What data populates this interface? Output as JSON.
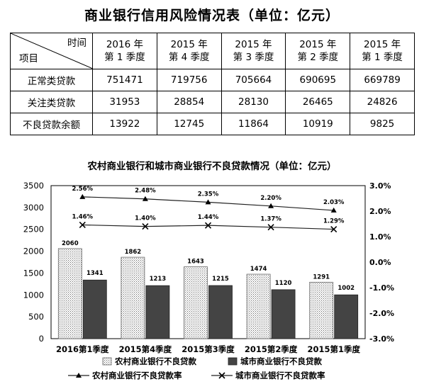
{
  "table": {
    "title": "商业银行信用风险情况表（单位：亿元）",
    "corner_top": "时间",
    "corner_bottom": "项目",
    "columns": [
      {
        "line1": "2016 年",
        "line2": "第 1 季度"
      },
      {
        "line1": "2015 年",
        "line2": "第 4 季度"
      },
      {
        "line1": "2015 年",
        "line2": "第 3 季度"
      },
      {
        "line1": "2015 年",
        "line2": "第 2 季度"
      },
      {
        "line1": "2015 年",
        "line2": "第 1 季度"
      }
    ],
    "rows": [
      {
        "label": "正常类贷款",
        "values": [
          "751471",
          "719756",
          "705664",
          "690695",
          "669789"
        ]
      },
      {
        "label": "关注类贷款",
        "values": [
          "31953",
          "28854",
          "28130",
          "26465",
          "24826"
        ]
      },
      {
        "label": "不良贷款余额",
        "values": [
          "13922",
          "12745",
          "11864",
          "10919",
          "9825"
        ]
      }
    ]
  },
  "chart_data": {
    "type": "bar",
    "title": "农村商业银行和城市商业银行不良贷款情况（单位：亿元）",
    "categories": [
      "2016第1季度",
      "2015第4季度",
      "2015第3季度",
      "2015第2季度",
      "2015第1季度"
    ],
    "ylim": [
      0,
      3500
    ],
    "yticks": [
      "0",
      "500",
      "1000",
      "1500",
      "2000",
      "2500",
      "3000",
      "3500"
    ],
    "ylim_right": [
      -3.0,
      3.0
    ],
    "yticks_right": [
      "-3.0%",
      "-2.0%",
      "-1.0%",
      "0.0%",
      "1.0%",
      "2.0%",
      "3.0%"
    ],
    "bar_series": [
      {
        "name": "农村商业银行不良贷款",
        "values": [
          2060,
          1862,
          1643,
          1474,
          1291
        ],
        "labels": [
          "2060",
          "1862",
          "1643",
          "1474",
          "1291"
        ]
      },
      {
        "name": "城市商业银行不良贷款",
        "values": [
          1341,
          1213,
          1215,
          1120,
          1002
        ],
        "labels": [
          "1341",
          "1213",
          "1215",
          "1120",
          "1002"
        ]
      }
    ],
    "line_series": [
      {
        "name": "农村商业银行不良贷款率",
        "values": [
          2.56,
          2.48,
          2.35,
          2.2,
          2.03
        ],
        "labels": [
          "2.56%",
          "2.48%",
          "2.35%",
          "2.20%",
          "2.03%"
        ]
      },
      {
        "name": "城市商业银行不良贷款率",
        "values": [
          1.46,
          1.4,
          1.44,
          1.37,
          1.29
        ],
        "labels": [
          "1.46%",
          "1.40%",
          "1.44%",
          "1.37%",
          "1.29%"
        ]
      }
    ],
    "legend_position": "bottom"
  }
}
